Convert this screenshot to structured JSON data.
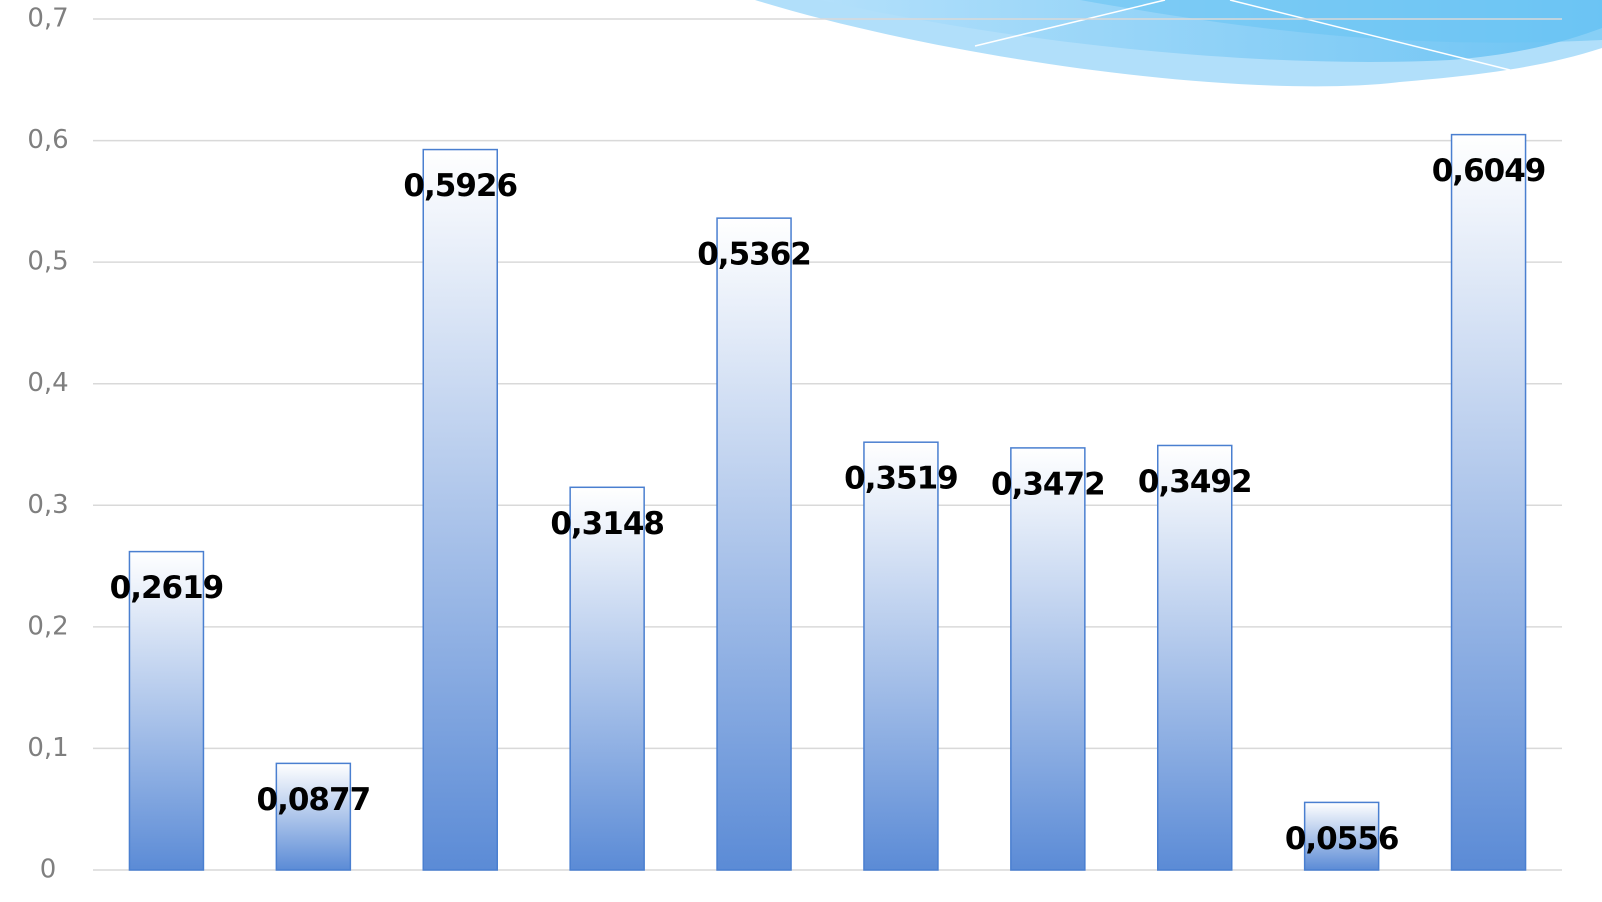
{
  "chart_data": {
    "type": "bar",
    "categories": [
      null,
      null,
      null,
      null,
      null,
      null,
      null,
      null,
      null,
      null
    ],
    "values": [
      0.2619,
      0.0877,
      0.5926,
      0.3148,
      0.5362,
      0.3519,
      0.3472,
      0.3492,
      0.0556,
      0.6049
    ],
    "value_labels": [
      "0,2619",
      "0,0877",
      "0,5926",
      "0,3148",
      "0,5362",
      "0,3519",
      "0,3472",
      "0,3492",
      "0,0556",
      "0,6049"
    ],
    "color": "#5b8bd6",
    "ylim": [
      0,
      0.7
    ],
    "yticks": [
      0,
      {
        "value": 0.1,
        "label": "0,1"
      },
      {
        "value": 0.2,
        "label": "0,2"
      },
      {
        "value": 0.3,
        "label": "0,3"
      },
      {
        "value": 0.4,
        "label": "0,4"
      },
      {
        "value": 0.5,
        "label": "0,5"
      },
      {
        "value": 0.6,
        "label": "0,6"
      },
      {
        "value": 0.7,
        "label": "0,7"
      }
    ],
    "grid": true
  }
}
